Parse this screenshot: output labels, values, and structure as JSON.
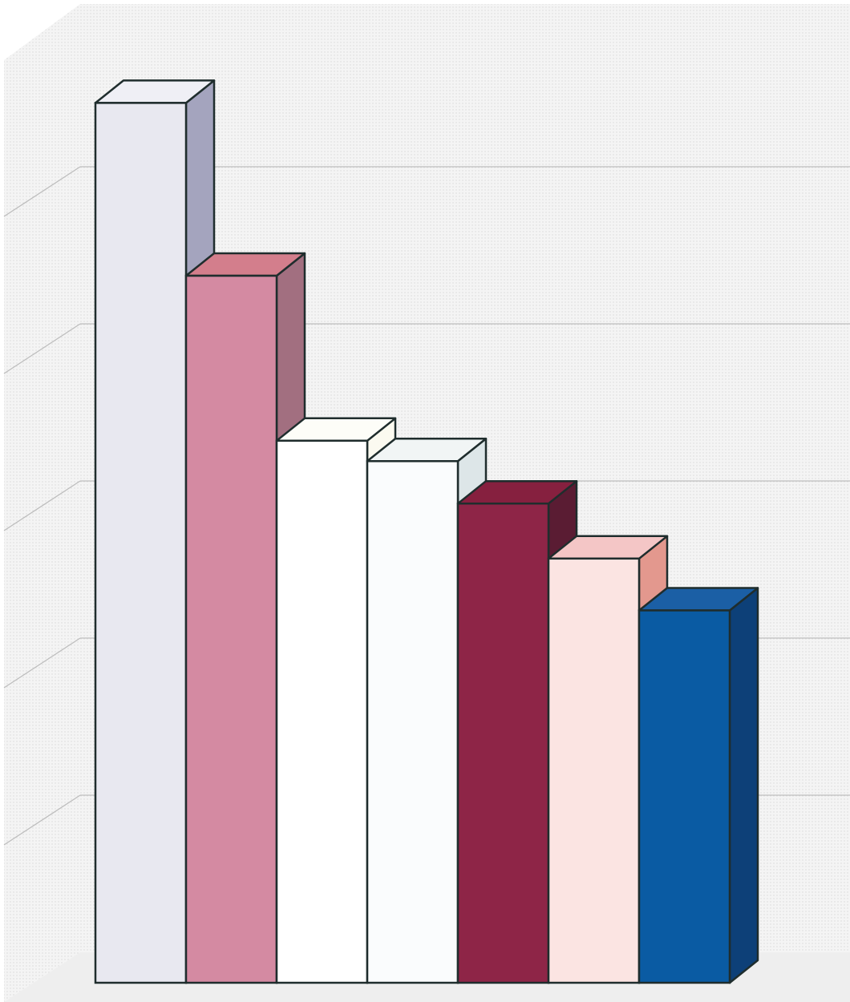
{
  "chart_data": {
    "type": "bar",
    "style": "3d",
    "title": "",
    "xlabel": "",
    "ylabel": "",
    "ylim": [
      0,
      6
    ],
    "grid": true,
    "legend": "none",
    "values": [
      5.6,
      4.5,
      3.45,
      3.32,
      3.05,
      2.7,
      2.37
    ],
    "colors": {
      "front": [
        "#e8e8f0",
        "#d48aa2",
        "#ffffff",
        "#fafcfd",
        "#8e2547",
        "#fbe4e2",
        "#0a5ba3"
      ],
      "top": [
        "#efeff5",
        "#d37e8c",
        "#fdfdf8",
        "#f1f5f5",
        "#86203f",
        "#f4c6c6",
        "#1b5fa5"
      ],
      "side": [
        "#a4a4be",
        "#a26f80",
        "#fbfaf0",
        "#dde6e8",
        "#5a1c33",
        "#e3988e",
        "#0d4078"
      ],
      "wall": "#f2f2f2",
      "floor": "#eeeeee",
      "gridline": "#bdbdbd",
      "outline": "#1f2d2d"
    }
  }
}
